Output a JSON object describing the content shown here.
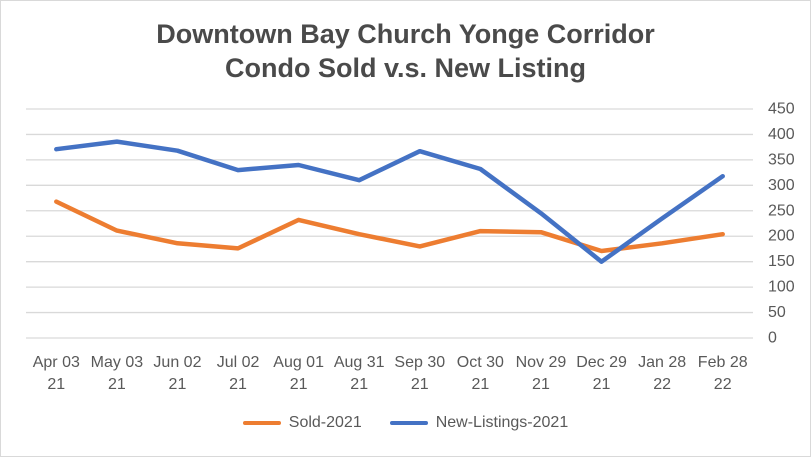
{
  "colors": {
    "background": "#FFFFFF",
    "border": "#D9D9D9",
    "grid": "#D9D9D9",
    "axis_text": "#595959",
    "title_text": "#4A4A4A",
    "sold_series": "#ED7D31",
    "new_listings_series": "#4472C4"
  },
  "chart_data": {
    "type": "line",
    "title": "Downtown Bay Church Yonge Corridor Condo Sold v.s. New Listing",
    "title_lines": [
      "Downtown Bay Church Yonge Corridor",
      "Condo Sold v.s. New Listing"
    ],
    "categories": [
      "Apr 03 21",
      "May 03 21",
      "Jun 02 21",
      "Jul 02 21",
      "Aug 01 21",
      "Aug 31 21",
      "Sep 30 21",
      "Oct 30 21",
      "Nov 29 21",
      "Dec 29 21",
      "Jan 28 22",
      "Feb 28 22"
    ],
    "category_labels_2line": [
      [
        "Apr 03",
        "21"
      ],
      [
        "May 03",
        "21"
      ],
      [
        "Jun 02",
        "21"
      ],
      [
        "Jul 02",
        "21"
      ],
      [
        "Aug 01",
        "21"
      ],
      [
        "Aug 31",
        "21"
      ],
      [
        "Sep 30",
        "21"
      ],
      [
        "Oct 30",
        "21"
      ],
      [
        "Nov 29",
        "21"
      ],
      [
        "Dec 29",
        "21"
      ],
      [
        "Jan 28",
        "22"
      ],
      [
        "Feb 28",
        "22"
      ]
    ],
    "series": [
      {
        "name": "Sold-2021",
        "color": "#ED7D31",
        "values": [
          268,
          211,
          186,
          176,
          232,
          204,
          180,
          210,
          208,
          171,
          186,
          204
        ]
      },
      {
        "name": "New-Listings-2021",
        "color": "#4472C4",
        "values": [
          371,
          386,
          368,
          330,
          340,
          310,
          367,
          332,
          245,
          150,
          235,
          318
        ]
      }
    ],
    "xlabel": "",
    "ylabel": "",
    "ylim": [
      0,
      450
    ],
    "ytick_step": 50,
    "yticks": [
      0,
      50,
      100,
      150,
      200,
      250,
      300,
      350,
      400,
      450
    ],
    "yaxis_side": "right",
    "grid": "horizontal",
    "legend_position": "bottom"
  }
}
